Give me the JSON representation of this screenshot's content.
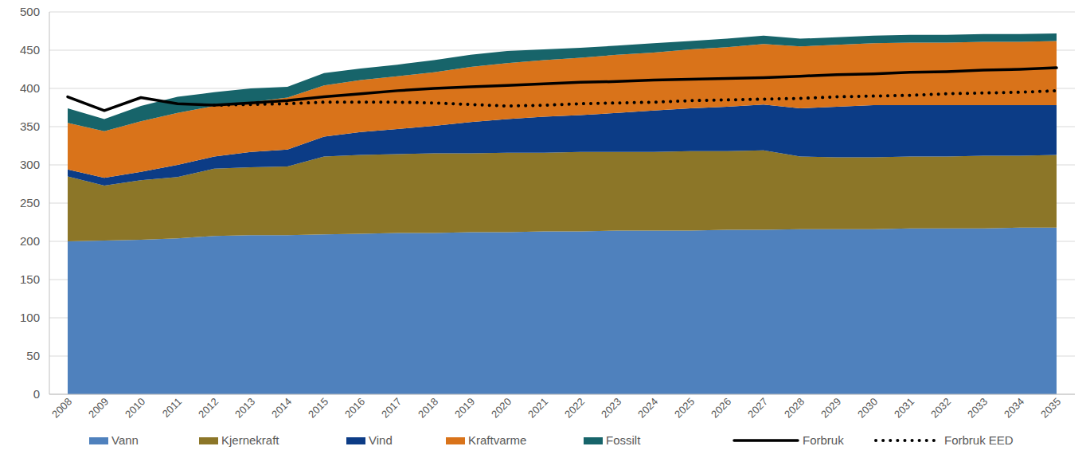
{
  "chart_data": {
    "type": "area",
    "stacked": true,
    "grid": true,
    "legend": "bottom",
    "categories": [
      "2008",
      "2009",
      "2010",
      "2011",
      "2012",
      "2013",
      "2014",
      "2015",
      "2016",
      "2017",
      "2018",
      "2019",
      "2020",
      "2021",
      "2022",
      "2023",
      "2024",
      "2025",
      "2026",
      "2027",
      "2028",
      "2029",
      "2030",
      "2031",
      "2032",
      "2033",
      "2034",
      "2035"
    ],
    "ylim": [
      0,
      500
    ],
    "yticks": [
      0,
      50,
      100,
      150,
      200,
      250,
      300,
      350,
      400,
      450,
      500
    ],
    "series": [
      {
        "name": "Vann",
        "color": "#4f81bd",
        "type": "area",
        "values": [
          200,
          201,
          202,
          204,
          207,
          208,
          208,
          209,
          210,
          211,
          211,
          212,
          212,
          213,
          213,
          214,
          214,
          214,
          215,
          215,
          216,
          216,
          216,
          217,
          217,
          217,
          218,
          218
        ]
      },
      {
        "name": "Kjernekraft",
        "color": "#8c7628",
        "type": "area",
        "values": [
          85,
          72,
          78,
          80,
          88,
          89,
          90,
          102,
          103,
          103,
          104,
          103,
          104,
          103,
          104,
          103,
          103,
          104,
          103,
          104,
          95,
          94,
          94,
          94,
          94,
          95,
          94,
          95
        ]
      },
      {
        "name": "Vind",
        "color": "#0c3c86",
        "type": "area",
        "values": [
          9,
          10,
          11,
          16,
          16,
          20,
          22,
          26,
          30,
          33,
          36,
          41,
          44,
          47,
          48,
          51,
          54,
          56,
          58,
          60,
          63,
          66,
          68,
          67,
          67,
          66,
          66,
          65
        ]
      },
      {
        "name": "Kraftvarme",
        "color": "#d9731a",
        "type": "area",
        "values": [
          61,
          61,
          66,
          68,
          66,
          65,
          68,
          67,
          68,
          69,
          70,
          72,
          73,
          74,
          75,
          76,
          76,
          77,
          78,
          79,
          81,
          81,
          81,
          82,
          82,
          83,
          83,
          84
        ]
      },
      {
        "name": "Fossilt",
        "color": "#17646a",
        "type": "area",
        "values": [
          19,
          16,
          20,
          21,
          18,
          18,
          14,
          16,
          15,
          15,
          16,
          16,
          16,
          14,
          13,
          12,
          12,
          11,
          11,
          11,
          10,
          10,
          10,
          10,
          10,
          10,
          10,
          10
        ]
      },
      {
        "name": "Forbruk",
        "color": "#000000",
        "type": "line",
        "line_style": "solid",
        "values": [
          389,
          371,
          388,
          380,
          378,
          381,
          384,
          389,
          393,
          397,
          400,
          402,
          404,
          406,
          408,
          409,
          411,
          412,
          413,
          414,
          416,
          418,
          419,
          421,
          422,
          424,
          425,
          427
        ]
      },
      {
        "name": "Forbruk EED",
        "color": "#000000",
        "type": "line",
        "line_style": "dotted",
        "values": [
          null,
          null,
          null,
          null,
          378,
          379,
          380,
          382,
          382,
          382,
          381,
          379,
          377,
          378,
          380,
          381,
          382,
          384,
          385,
          386,
          387,
          389,
          390,
          391,
          393,
          394,
          395,
          397
        ]
      }
    ]
  }
}
